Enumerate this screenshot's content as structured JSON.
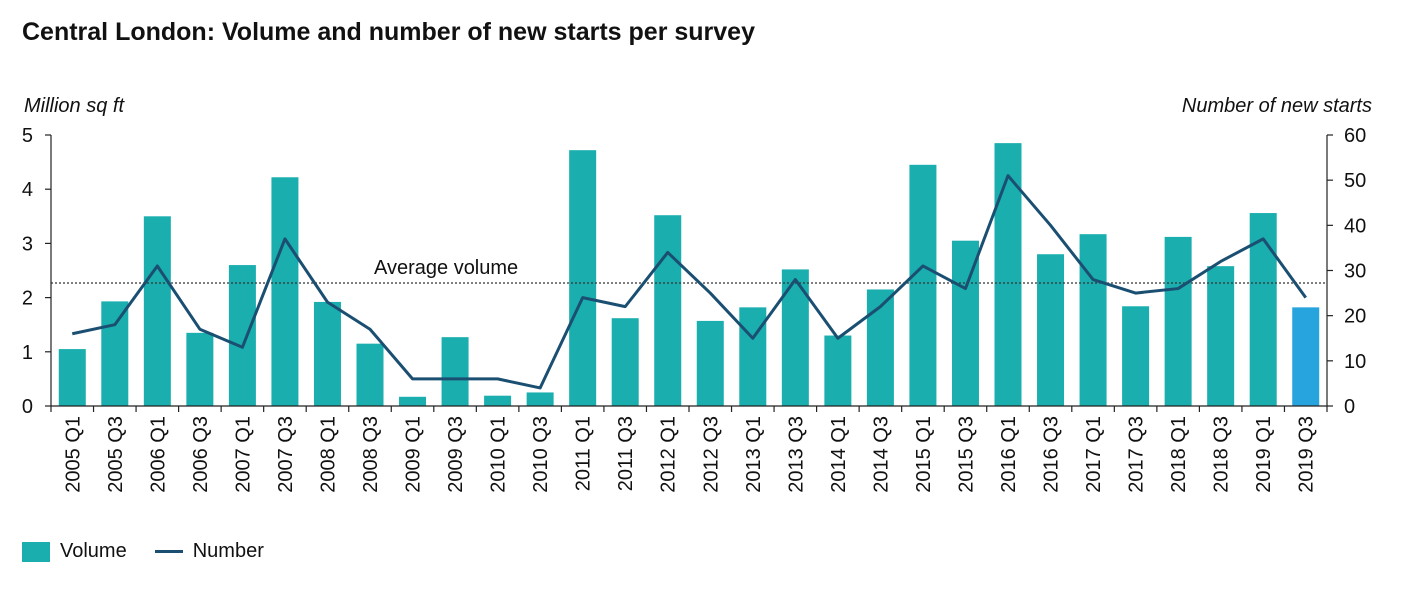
{
  "title": "Central London: Volume and number of new starts per survey",
  "chart_data": {
    "type": "bar",
    "categories": [
      "2005 Q1",
      "2005 Q3",
      "2006 Q1",
      "2006 Q3",
      "2007 Q1",
      "2007 Q3",
      "2008 Q1",
      "2008 Q3",
      "2009 Q1",
      "2009 Q3",
      "2010 Q1",
      "2010 Q3",
      "2011 Q1",
      "2011 Q3",
      "2012 Q1",
      "2012 Q3",
      "2013 Q1",
      "2013 Q3",
      "2014 Q1",
      "2014 Q3",
      "2015 Q1",
      "2015 Q3",
      "2016 Q1",
      "2016 Q3",
      "2017 Q1",
      "2017 Q3",
      "2018 Q1",
      "2018 Q3",
      "2019 Q1",
      "2019 Q3"
    ],
    "series": [
      {
        "name": "Volume",
        "type": "bar",
        "axis": "left",
        "color": "#1aaeae",
        "values": [
          1.05,
          1.93,
          3.5,
          1.35,
          2.6,
          4.22,
          1.92,
          1.15,
          0.17,
          1.27,
          0.19,
          0.25,
          4.72,
          1.62,
          3.52,
          1.57,
          1.82,
          2.52,
          1.3,
          2.15,
          4.45,
          3.05,
          4.85,
          2.8,
          3.17,
          1.84,
          3.12,
          2.58,
          3.56,
          1.82
        ]
      },
      {
        "name": "Number",
        "type": "line",
        "axis": "right",
        "color": "#1b4f72",
        "values": [
          16,
          18,
          31,
          17,
          13,
          37,
          23,
          17,
          6,
          6,
          6,
          4,
          24,
          22,
          34,
          25,
          15,
          28,
          15,
          22,
          31,
          26,
          51,
          40,
          28,
          25,
          26,
          32,
          37,
          24
        ]
      }
    ],
    "highlight": {
      "category": "2019 Q3",
      "color": "#27a3dd"
    },
    "left_axis": {
      "label": "Million sq ft",
      "range": [
        0,
        5
      ],
      "ticks": [
        "0",
        "1",
        "2",
        "3",
        "4",
        "5"
      ]
    },
    "right_axis": {
      "label": "Number of new starts",
      "range": [
        0,
        60
      ],
      "ticks": [
        "0",
        "10",
        "20",
        "30",
        "40",
        "50",
        "60"
      ]
    },
    "reference_line": {
      "label": "Average volume",
      "value": 2.27,
      "axis": "left",
      "style": "dotted"
    },
    "grid": false,
    "legend_position": "bottom-left"
  },
  "legend": {
    "volume": "Volume",
    "number": "Number"
  }
}
